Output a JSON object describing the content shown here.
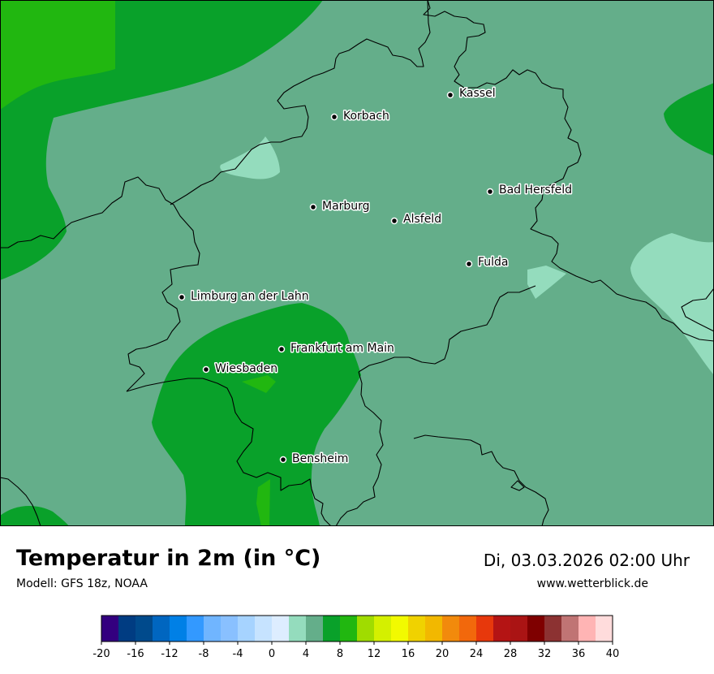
{
  "header": {
    "title": "Temperatur in 2m (in °C)",
    "model": "Modell: GFS 18z, NOAA",
    "datetime": "Di, 03.03.2026 02:00 Uhr",
    "website": "www.wetterblick.de"
  },
  "cities": [
    {
      "name": "Kassel"
    },
    {
      "name": "Korbach"
    },
    {
      "name": "Bad Hersfeld"
    },
    {
      "name": "Marburg"
    },
    {
      "name": "Alsfeld"
    },
    {
      "name": "Fulda"
    },
    {
      "name": "Limburg an der Lahn"
    },
    {
      "name": "Frankfurt am Main"
    },
    {
      "name": "Wiesbaden"
    },
    {
      "name": "Bensheim"
    }
  ],
  "legend": {
    "unit": "°C",
    "min": -20,
    "max": 40,
    "step": 2,
    "tick_labels": [
      "-20",
      "-16",
      "-12",
      "-8",
      "-4",
      "0",
      "4",
      "8",
      "12",
      "16",
      "20",
      "24",
      "28",
      "32",
      "36",
      "40"
    ],
    "colors": [
      "#33007f",
      "#003c82",
      "#004a8c",
      "#0066c0",
      "#0080e6",
      "#3399ff",
      "#70b5ff",
      "#89c0ff",
      "#a6d3ff",
      "#c6e3ff",
      "#ddedff",
      "#94dcbd",
      "#64ae8a",
      "#09a12a",
      "#21b710",
      "#a0dc00",
      "#d4f000",
      "#f2fa00",
      "#f0d200",
      "#f2b800",
      "#f28a0c",
      "#f2680c",
      "#e7380c",
      "#b41414",
      "#aa1414",
      "#7f0000",
      "#8c3232",
      "#c07474",
      "#ffb4b4",
      "#ffdcdc"
    ]
  },
  "map_colors": {
    "c4_6": "#64ae8a",
    "c6_8": "#09a12a",
    "c8_10": "#21b710",
    "c2_4": "#94dcbd",
    "border": "#000000"
  }
}
